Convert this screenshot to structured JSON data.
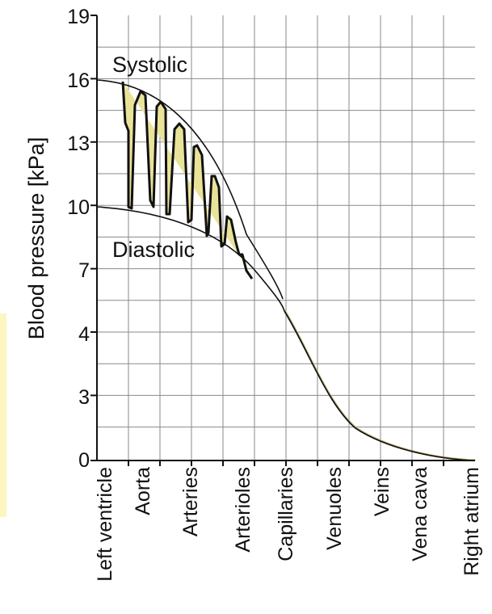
{
  "chart_data": {
    "type": "line",
    "ylabel": "Blood pressure  [kPa]",
    "y_ticks": [
      "19",
      "16",
      "13",
      "10",
      "7",
      "4",
      "3",
      "0"
    ],
    "x_labels": [
      "Left ventricle",
      "Aorta",
      "Arteries",
      "Arterioles",
      "Capillaries",
      "Venuoles",
      "Veins",
      "Vena cava",
      "Right atrium"
    ],
    "annotations": [
      "Systolic",
      "Diastolic"
    ],
    "grid": true,
    "colors": {
      "line": "#111111",
      "grid": "#8a8a8a",
      "pulse_fill": "#e9e39a",
      "highlight": "#fdf6c0"
    }
  }
}
